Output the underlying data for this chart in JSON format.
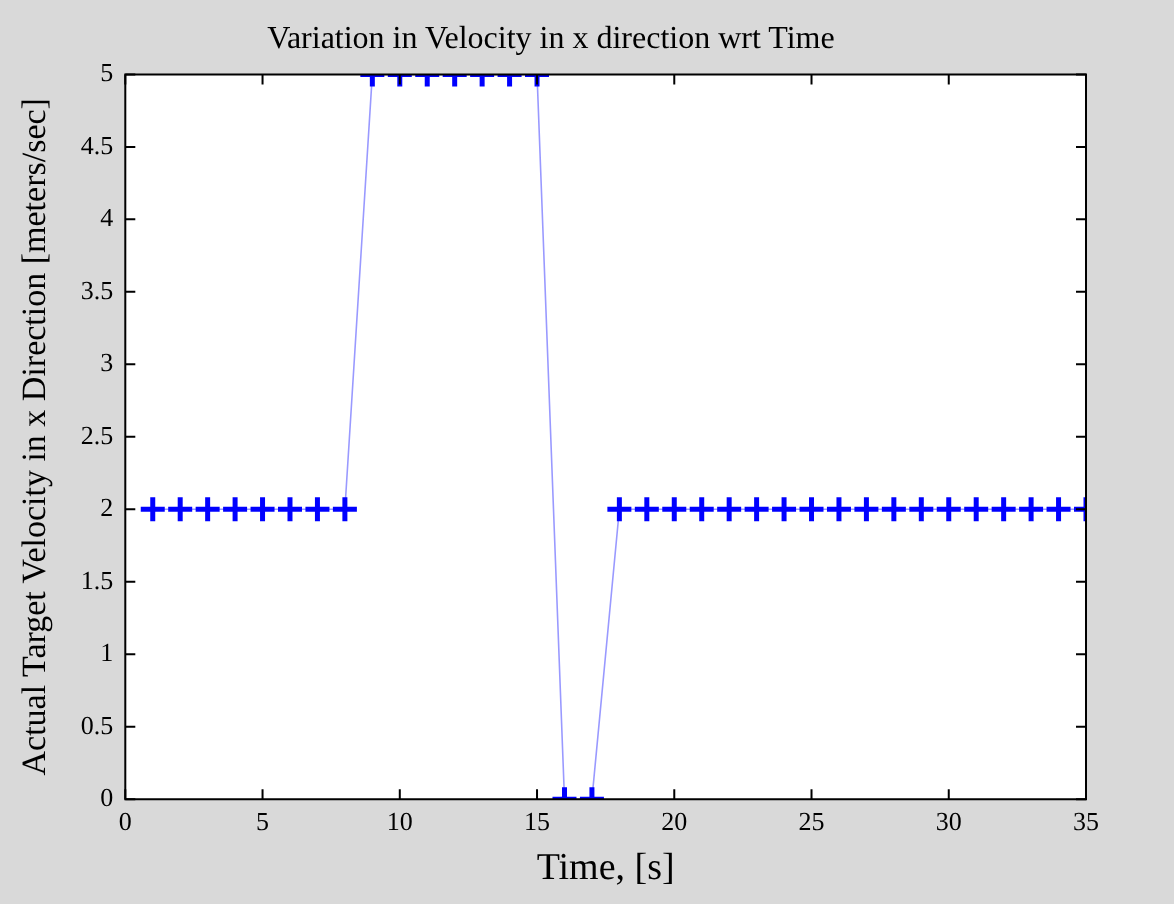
{
  "chart_data": {
    "type": "line",
    "title": "Variation in Velocity in x direction wrt Time",
    "xlabel": "Time, [s]",
    "ylabel": "Actual Target Velocity in x Direction [meters/sec]",
    "x": [
      1,
      2,
      3,
      4,
      5,
      6,
      7,
      8,
      9,
      10,
      11,
      12,
      13,
      14,
      15,
      16,
      17,
      18,
      19,
      20,
      21,
      22,
      23,
      24,
      25,
      26,
      27,
      28,
      29,
      30,
      31,
      32,
      33,
      34,
      35
    ],
    "series": [
      {
        "color": "#0000ff",
        "values": [
          2,
          2,
          2,
          2,
          2,
          2,
          2,
          2,
          5,
          5,
          5,
          5,
          5,
          5,
          5,
          0,
          0,
          2,
          2,
          2,
          2,
          2,
          2,
          2,
          2,
          2,
          2,
          2,
          2,
          2,
          2,
          2,
          2,
          2,
          2
        ]
      }
    ],
    "xlim": [
      0,
      35
    ],
    "xticks": [
      0,
      5,
      10,
      15,
      20,
      25,
      30,
      35
    ],
    "ylim": [
      0,
      5
    ],
    "yticks": [
      0,
      0.5,
      1,
      1.5,
      2,
      2.5,
      3,
      3.5,
      4,
      4.5,
      5
    ],
    "grid": false,
    "legend": false,
    "marker": "cross",
    "line_style": "solid"
  }
}
